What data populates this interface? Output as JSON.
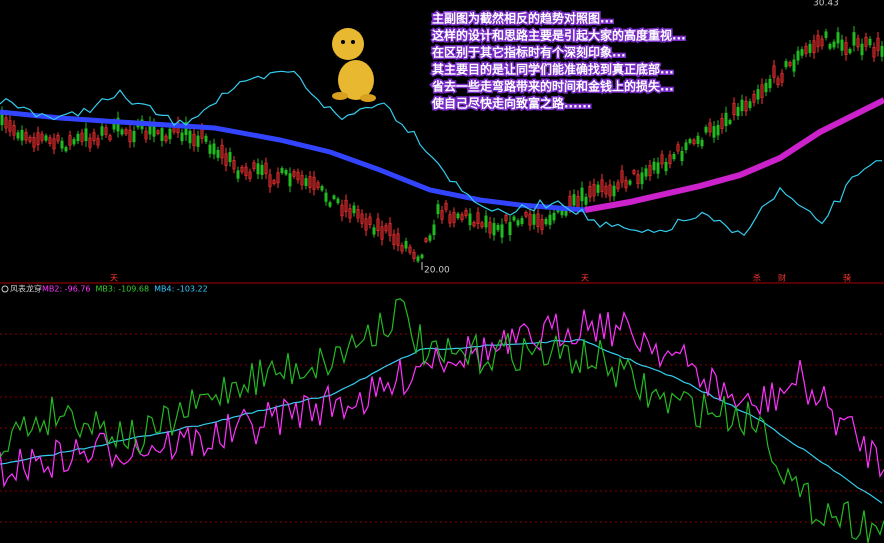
{
  "annotation": {
    "lines": [
      "主副图为截然相反的趋势对照图...",
      "这样的设计和思路主要是引起大家的高度重视...",
      "在区别于其它指标时有个深刻印象...",
      "其主要目的是让同学们能准确找到真正底部...",
      "省去一些走弯路带来的时间和金钱上的损失...",
      "使自己尽快走向致富之路......"
    ]
  },
  "main_panel": {
    "high_label": "30.43",
    "low_label": "20.00",
    "markers": [
      "天",
      "天",
      "杀",
      "财",
      "骑"
    ]
  },
  "indicator_panel": {
    "name": "风表龙穿",
    "items": [
      {
        "text": "MB2: -96.76",
        "color": "#ff33ff"
      },
      {
        "text": "MB3: -109.68",
        "color": "#33cc33"
      },
      {
        "text": "MB4: -103.22",
        "color": "#33ccff"
      }
    ]
  }
}
